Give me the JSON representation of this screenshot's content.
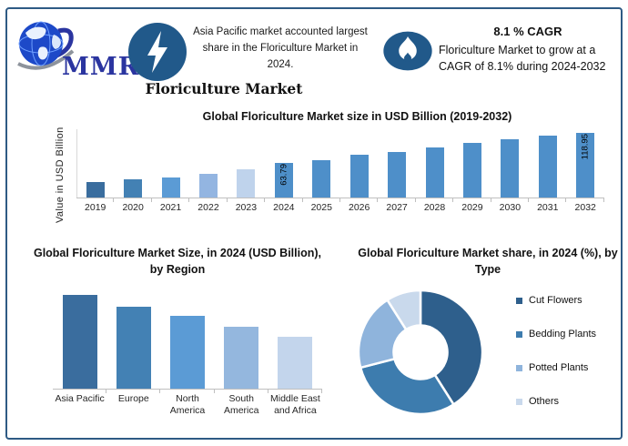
{
  "page": {
    "background": "#FFFFFF",
    "border_color": "#2E5A84"
  },
  "header": {
    "logo": {
      "text": "MMR",
      "text_color": "#2B35A0",
      "globe_color": "#1D49C8",
      "icon": "globe-logo"
    },
    "lightning_badge": {
      "icon": "lightning-icon",
      "circle_color": "#21598A"
    },
    "flame_badge": {
      "icon": "flame-icon",
      "circle_color": "#21598A"
    },
    "headline": "Asia Pacific market accounted largest share in the Floriculture Market in 2024.",
    "title": "Floriculture Market",
    "cagr": {
      "heading": "8.1 % CAGR",
      "body": "Floriculture Market to grow at a CAGR of 8.1% during 2024-2032"
    }
  },
  "chart_data": [
    {
      "type": "bar",
      "title": "Global Floriculture Market size in USD Billion (2019-2032)",
      "xlabel": "",
      "ylabel": "Value in USD Billion",
      "categories": [
        "2019",
        "2020",
        "2021",
        "2022",
        "2023",
        "2024",
        "2025",
        "2026",
        "2027",
        "2028",
        "2029",
        "2030",
        "2031",
        "2032"
      ],
      "values": [
        28,
        33,
        37,
        44,
        51,
        63.79,
        69,
        79,
        84,
        92,
        100,
        106,
        113,
        118.95
      ],
      "values_note": "only 2024 and 2032 carry data labels; other values estimated from bar heights",
      "bar_labels": {
        "2024": "63.79",
        "2032": "118.95"
      },
      "colors": [
        "#3A6D9E",
        "#4381B4",
        "#5B9BD5",
        "#93B5E1",
        "#BFD3EC",
        "#4E8FC9",
        "#4E8FC9",
        "#4E8FC9",
        "#4E8FC9",
        "#4E8FC9",
        "#4E8FC9",
        "#4E8FC9",
        "#4E8FC9",
        "#4E8FC9"
      ],
      "ylim": [
        0,
        125
      ],
      "gridlines": false,
      "legend": false
    },
    {
      "type": "bar",
      "title": "Global Floriculture Market Size, in 2024 (USD Billion), by Region",
      "xlabel": "",
      "ylabel": "",
      "categories": [
        "Asia Pacific",
        "Europe",
        "North America",
        "South America",
        "Middle East and Africa"
      ],
      "values": [
        100,
        88,
        78,
        66,
        56
      ],
      "values_note": "no numeric labels shown in chart; relative heights estimated",
      "colors": [
        "#3A6D9E",
        "#4381B4",
        "#5B9BD5",
        "#94B7DE",
        "#C3D5EC"
      ],
      "ylim": [
        0,
        110
      ],
      "gridlines": false,
      "legend": false
    },
    {
      "type": "pie",
      "subtype": "donut",
      "title": "Global Floriculture Market share, in 2024 (%), by Type",
      "labels": [
        "Cut Flowers",
        "Bedding Plants",
        "Potted Plants",
        "Others"
      ],
      "values": [
        41,
        30,
        20,
        9
      ],
      "values_note": "percent shares estimated from arc angles; no numeric labels shown",
      "colors": [
        "#2E5F8C",
        "#3D7CAE",
        "#8FB4DC",
        "#C9D9EC"
      ],
      "legend_position": "right"
    }
  ]
}
